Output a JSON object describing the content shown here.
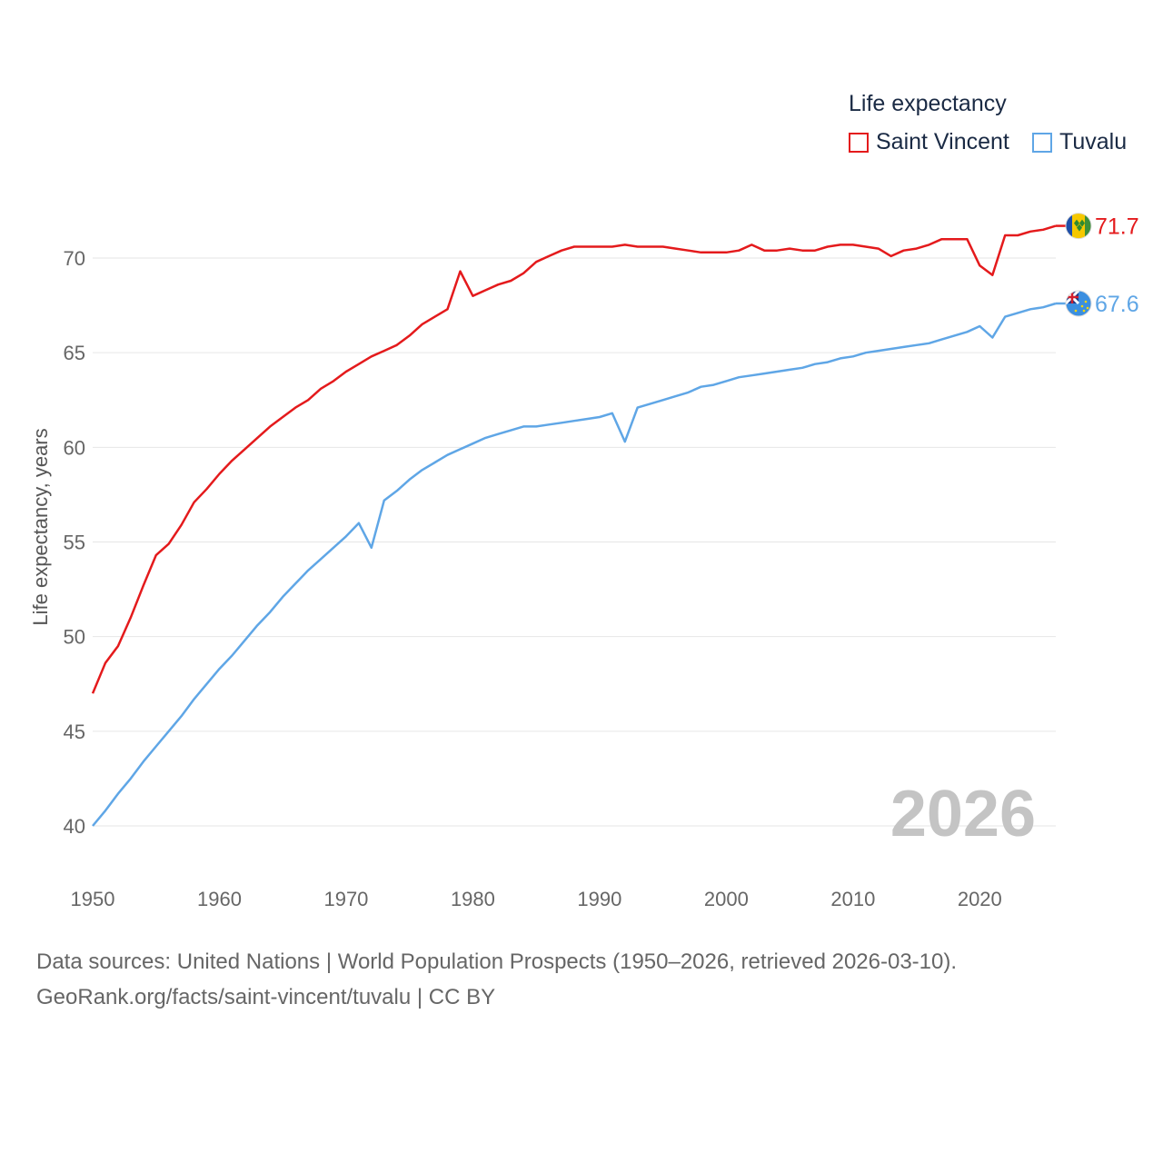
{
  "legend": {
    "title": "Life expectancy",
    "items": [
      {
        "label": "Saint Vincent",
        "color": "#e41a1c"
      },
      {
        "label": "Tuvalu",
        "color": "#5fa6e6"
      }
    ]
  },
  "footer": {
    "line1": "Data sources: United Nations | World Population Prospects (1950–2026, retrieved 2026-03-10).",
    "line2": "GeoRank.org/facts/saint-vincent/tuvalu | CC BY"
  },
  "chart_data": {
    "type": "line",
    "title": "Life expectancy",
    "xlabel": "",
    "ylabel": "Life expectancy, years",
    "xlim": [
      1950,
      2026
    ],
    "ylim": [
      40,
      72
    ],
    "x_ticks": [
      1950,
      1960,
      1970,
      1980,
      1990,
      2000,
      2010,
      2020
    ],
    "y_ticks": [
      40,
      45,
      50,
      55,
      60,
      65,
      70
    ],
    "grid": true,
    "legend_position": "top-right",
    "year_label": "2026",
    "x": [
      1950,
      1951,
      1952,
      1953,
      1954,
      1955,
      1956,
      1957,
      1958,
      1959,
      1960,
      1961,
      1962,
      1963,
      1964,
      1965,
      1966,
      1967,
      1968,
      1969,
      1970,
      1971,
      1972,
      1973,
      1974,
      1975,
      1976,
      1977,
      1978,
      1979,
      1980,
      1981,
      1982,
      1983,
      1984,
      1985,
      1986,
      1987,
      1988,
      1989,
      1990,
      1991,
      1992,
      1993,
      1994,
      1995,
      1996,
      1997,
      1998,
      1999,
      2000,
      2001,
      2002,
      2003,
      2004,
      2005,
      2006,
      2007,
      2008,
      2009,
      2010,
      2011,
      2012,
      2013,
      2014,
      2015,
      2016,
      2017,
      2018,
      2019,
      2020,
      2021,
      2022,
      2023,
      2024,
      2025,
      2026
    ],
    "series": [
      {
        "name": "Saint Vincent",
        "color": "#e41a1c",
        "end_label": "71.7",
        "values": [
          47.0,
          48.6,
          49.5,
          51.0,
          52.7,
          54.3,
          54.9,
          55.9,
          57.1,
          57.8,
          58.6,
          59.3,
          59.9,
          60.5,
          61.1,
          61.6,
          62.1,
          62.5,
          63.1,
          63.5,
          64.0,
          64.4,
          64.8,
          65.1,
          65.4,
          65.9,
          66.5,
          66.9,
          67.3,
          69.3,
          68.0,
          68.3,
          68.6,
          68.8,
          69.2,
          69.8,
          70.1,
          70.4,
          70.6,
          70.6,
          70.6,
          70.6,
          70.7,
          70.6,
          70.6,
          70.6,
          70.5,
          70.4,
          70.3,
          70.3,
          70.3,
          70.4,
          70.7,
          70.4,
          70.4,
          70.5,
          70.4,
          70.4,
          70.6,
          70.7,
          70.7,
          70.6,
          70.5,
          70.1,
          70.4,
          70.5,
          70.7,
          71.0,
          71.0,
          71.0,
          69.6,
          69.1,
          71.2,
          71.2,
          71.4,
          71.5,
          71.7
        ]
      },
      {
        "name": "Tuvalu",
        "color": "#5fa6e6",
        "end_label": "67.6",
        "values": [
          40.0,
          40.8,
          41.7,
          42.5,
          43.4,
          44.2,
          45.0,
          45.8,
          46.7,
          47.5,
          48.3,
          49.0,
          49.8,
          50.6,
          51.3,
          52.1,
          52.8,
          53.5,
          54.1,
          54.7,
          55.3,
          56.0,
          54.7,
          57.2,
          57.7,
          58.3,
          58.8,
          59.2,
          59.6,
          59.9,
          60.2,
          60.5,
          60.7,
          60.9,
          61.1,
          61.1,
          61.2,
          61.3,
          61.4,
          61.5,
          61.6,
          61.8,
          60.3,
          62.1,
          62.3,
          62.5,
          62.7,
          62.9,
          63.2,
          63.3,
          63.5,
          63.7,
          63.8,
          63.9,
          64.0,
          64.1,
          64.2,
          64.4,
          64.5,
          64.7,
          64.8,
          65.0,
          65.1,
          65.2,
          65.3,
          65.4,
          65.5,
          65.7,
          65.9,
          66.1,
          66.4,
          65.8,
          66.9,
          67.1,
          67.3,
          67.4,
          67.6
        ]
      }
    ]
  }
}
